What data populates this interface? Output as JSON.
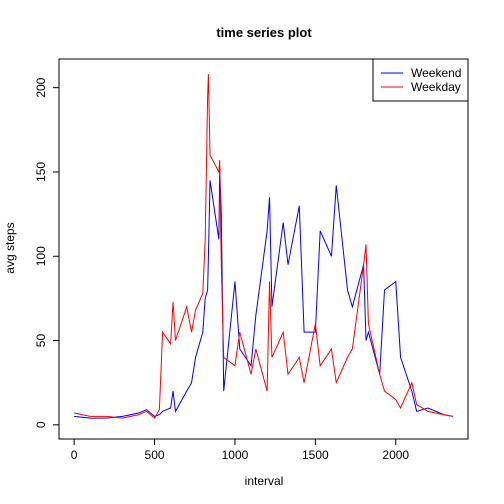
{
  "chart_data": {
    "type": "line",
    "title": "time series plot",
    "x_label": "interval",
    "y_label": "avg steps",
    "x": [
      0,
      100,
      200,
      300,
      400,
      450,
      500,
      530,
      550,
      600,
      615,
      630,
      700,
      730,
      755,
      800,
      815,
      830,
      835,
      845,
      900,
      905,
      915,
      930,
      1000,
      1030,
      1100,
      1130,
      1200,
      1215,
      1230,
      1300,
      1330,
      1400,
      1430,
      1500,
      1530,
      1600,
      1630,
      1700,
      1730,
      1800,
      1815,
      1830,
      1900,
      1930,
      2000,
      2030,
      2100,
      2130,
      2200,
      2300,
      2355
    ],
    "series": [
      {
        "name": "Weekend",
        "color": "#0000ff",
        "values": [
          5,
          4,
          4,
          5,
          7,
          9,
          5,
          6,
          8,
          10,
          20,
          8,
          20,
          25,
          40,
          55,
          75,
          80,
          100,
          145,
          110,
          153,
          125,
          20,
          85,
          45,
          35,
          65,
          115,
          135,
          70,
          120,
          95,
          130,
          55,
          55,
          115,
          100,
          142,
          80,
          70,
          95,
          50,
          55,
          30,
          80,
          85,
          40,
          20,
          8,
          10,
          6,
          5
        ]
      },
      {
        "name": "Weekday",
        "color": "#ff0000",
        "values": [
          7,
          5,
          5,
          4,
          6,
          8,
          4,
          9,
          55,
          48,
          73,
          50,
          70,
          55,
          68,
          78,
          110,
          195,
          208,
          160,
          150,
          157,
          95,
          40,
          35,
          55,
          30,
          45,
          20,
          85,
          40,
          55,
          30,
          40,
          25,
          60,
          35,
          45,
          25,
          40,
          45,
          95,
          107,
          60,
          30,
          20,
          15,
          10,
          25,
          12,
          8,
          6,
          5
        ]
      }
    ],
    "xlim": [
      -94.2,
      2449.2
    ],
    "ylim": [
      -8.4,
      217
    ],
    "xticks": [
      0,
      500,
      1000,
      1500,
      2000
    ],
    "yticks": [
      0,
      50,
      100,
      150,
      200
    ],
    "legend": "top-right"
  }
}
